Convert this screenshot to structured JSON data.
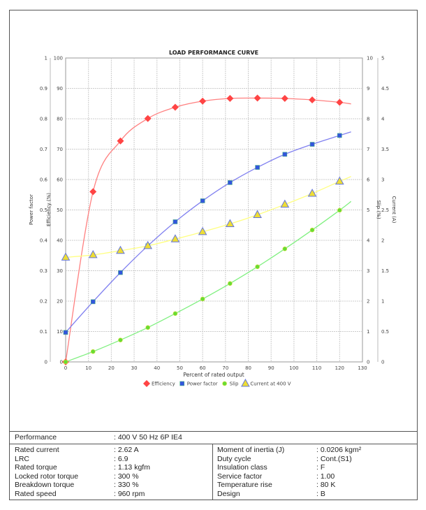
{
  "chart_data": {
    "type": "line",
    "title": "LOAD PERFORMANCE CURVE",
    "xlabel": "Percent of rated output",
    "xlim": [
      0,
      130
    ],
    "xticks": [
      0,
      10,
      20,
      30,
      40,
      50,
      60,
      70,
      80,
      90,
      100,
      110,
      120,
      130
    ],
    "axes": {
      "power_factor": {
        "label": "Power factor",
        "range": [
          0,
          1
        ],
        "ticks": [
          "0",
          "0.1",
          "0.2",
          "0.3",
          "0.4",
          "0.5",
          "0.6",
          "0.7",
          "0.8",
          "0.9",
          "1"
        ]
      },
      "efficiency": {
        "label": "Efficiency (%)",
        "range": [
          0,
          100
        ],
        "ticks": [
          "0",
          "10",
          "20",
          "30",
          "40",
          "50",
          "60",
          "70",
          "80",
          "90",
          "100"
        ]
      },
      "slip": {
        "label": "Slip (%)",
        "range": [
          0,
          10
        ],
        "ticks": [
          "0",
          "1",
          "2",
          "3",
          "4",
          "5",
          "6",
          "7",
          "8",
          "9",
          "10"
        ]
      },
      "current": {
        "label": "Current (A)",
        "range": [
          0,
          5
        ],
        "ticks": [
          "0",
          "0.5",
          "1",
          "1.5",
          "2",
          "2.5",
          "3",
          "3.5",
          "4",
          "4.5",
          "5"
        ]
      }
    },
    "grid": true,
    "legend_position": "bottom",
    "x": [
      0,
      12,
      24,
      36,
      48,
      60,
      72,
      84,
      96,
      108,
      120
    ],
    "series": [
      {
        "name": "Efficiency",
        "axis": "efficiency",
        "color": "#ff4444",
        "line": "#ff8080",
        "marker": "diamond",
        "values": [
          0,
          56,
          72.7,
          80.1,
          83.8,
          85.8,
          86.7,
          86.8,
          86.7,
          86.2,
          85.4
        ],
        "end": 84.9
      },
      {
        "name": "Power factor",
        "axis": "power_factor",
        "color": "#3355dd",
        "line": "#8080f0",
        "marker": "square",
        "values": [
          0.097,
          0.198,
          0.294,
          0.382,
          0.461,
          0.53,
          0.59,
          0.64,
          0.683,
          0.716,
          0.745
        ],
        "end": 0.757
      },
      {
        "name": "Slip",
        "axis": "slip",
        "color": "#66dd33",
        "line": "#80f080",
        "marker": "circle",
        "values": [
          0,
          0.34,
          0.72,
          1.13,
          1.59,
          2.07,
          2.58,
          3.13,
          3.72,
          4.34,
          4.99
        ],
        "end": 5.28
      },
      {
        "name": "Current at 400 V",
        "axis": "current",
        "color": "#eedd33",
        "line": "#ffff80",
        "marker": "triangle",
        "values": [
          1.72,
          1.76,
          1.83,
          1.91,
          2.02,
          2.14,
          2.27,
          2.42,
          2.59,
          2.77,
          2.97
        ],
        "end": 3.05
      }
    ]
  },
  "table": {
    "performance_label": "Performance",
    "performance_value": ": 400 V 50 Hz 6P IE4",
    "left": [
      {
        "label": "Rated current",
        "value": ": 2.62 A"
      },
      {
        "label": "LRC",
        "value": ": 6.9"
      },
      {
        "label": "Rated torque",
        "value": ": 1.13 kgfm"
      },
      {
        "label": "Locked rotor torque",
        "value": ": 300 %"
      },
      {
        "label": "Breakdown torque",
        "value": ": 330 %"
      },
      {
        "label": "Rated speed",
        "value": ": 960 rpm"
      }
    ],
    "right": [
      {
        "label": "Moment of inertia (J)",
        "value": ": 0.0206 kgm²"
      },
      {
        "label": "Duty cycle",
        "value": ": Cont.(S1)"
      },
      {
        "label": "Insulation class",
        "value": ": F"
      },
      {
        "label": "Service factor",
        "value": ": 1.00"
      },
      {
        "label": "Temperature rise",
        "value": ": 80 K"
      },
      {
        "label": "Design",
        "value": ": B"
      }
    ]
  }
}
